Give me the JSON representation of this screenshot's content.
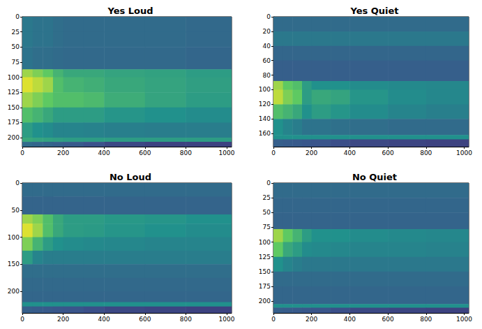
{
  "chart_data": [
    {
      "type": "heatmap",
      "title": "Yes Loud",
      "xlim": [
        0,
        1024
      ],
      "ylim": [
        0,
        215
      ],
      "xticks": [
        0,
        200,
        400,
        600,
        800,
        1000
      ],
      "yticks": [
        0,
        25,
        50,
        75,
        100,
        125,
        150,
        175,
        200
      ],
      "x_edges": [
        0,
        50,
        100,
        150,
        200,
        300,
        400,
        600,
        800,
        1024
      ],
      "y_edges": [
        0,
        25,
        50,
        87,
        100,
        125,
        150,
        175,
        200,
        207,
        215
      ],
      "cells": [
        [
          0.4,
          0.38,
          0.38,
          0.36,
          0.35,
          0.35,
          0.35,
          0.35,
          0.34
        ],
        [
          0.4,
          0.38,
          0.38,
          0.36,
          0.35,
          0.35,
          0.35,
          0.35,
          0.34
        ],
        [
          0.38,
          0.36,
          0.36,
          0.35,
          0.34,
          0.34,
          0.34,
          0.34,
          0.33
        ],
        [
          0.85,
          0.8,
          0.75,
          0.65,
          0.6,
          0.6,
          0.58,
          0.57,
          0.55
        ],
        [
          0.95,
          0.9,
          0.85,
          0.7,
          0.65,
          0.63,
          0.6,
          0.58,
          0.56
        ],
        [
          0.85,
          0.8,
          0.75,
          0.7,
          0.7,
          0.68,
          0.62,
          0.58,
          0.55
        ],
        [
          0.7,
          0.65,
          0.6,
          0.55,
          0.55,
          0.55,
          0.52,
          0.5,
          0.48
        ],
        [
          0.55,
          0.5,
          0.48,
          0.45,
          0.45,
          0.44,
          0.43,
          0.42,
          0.42
        ],
        [
          0.6,
          0.58,
          0.57,
          0.56,
          0.55,
          0.55,
          0.55,
          0.55,
          0.55
        ],
        [
          0.35,
          0.33,
          0.32,
          0.3,
          0.28,
          0.25,
          0.22,
          0.2,
          0.2
        ]
      ]
    },
    {
      "type": "heatmap",
      "title": "Yes Quiet",
      "xlim": [
        0,
        1024
      ],
      "ylim": [
        0,
        178
      ],
      "xticks": [
        0,
        200,
        400,
        600,
        800,
        1000
      ],
      "yticks": [
        0,
        20,
        40,
        60,
        80,
        100,
        120,
        140,
        160
      ],
      "x_edges": [
        0,
        50,
        100,
        150,
        200,
        300,
        400,
        600,
        800,
        1024
      ],
      "y_edges": [
        0,
        20,
        40,
        60,
        88,
        100,
        120,
        140,
        162,
        168,
        178
      ],
      "cells": [
        [
          0.35,
          0.35,
          0.35,
          0.35,
          0.35,
          0.35,
          0.35,
          0.35,
          0.35
        ],
        [
          0.4,
          0.4,
          0.4,
          0.4,
          0.4,
          0.4,
          0.4,
          0.4,
          0.4
        ],
        [
          0.33,
          0.33,
          0.33,
          0.33,
          0.33,
          0.33,
          0.33,
          0.33,
          0.33
        ],
        [
          0.3,
          0.3,
          0.3,
          0.3,
          0.3,
          0.3,
          0.3,
          0.3,
          0.3
        ],
        [
          0.85,
          0.75,
          0.7,
          0.55,
          0.5,
          0.5,
          0.48,
          0.47,
          0.46
        ],
        [
          0.9,
          0.8,
          0.75,
          0.55,
          0.6,
          0.58,
          0.52,
          0.48,
          0.46
        ],
        [
          0.7,
          0.65,
          0.6,
          0.5,
          0.55,
          0.52,
          0.48,
          0.45,
          0.43
        ],
        [
          0.5,
          0.45,
          0.42,
          0.38,
          0.38,
          0.37,
          0.36,
          0.35,
          0.35
        ],
        [
          0.5,
          0.5,
          0.5,
          0.5,
          0.5,
          0.5,
          0.5,
          0.5,
          0.5
        ],
        [
          0.3,
          0.29,
          0.28,
          0.27,
          0.26,
          0.24,
          0.22,
          0.21,
          0.2
        ]
      ]
    },
    {
      "type": "heatmap",
      "title": "No Loud",
      "xlim": [
        0,
        1024
      ],
      "ylim": [
        0,
        240
      ],
      "xticks": [
        0,
        200,
        400,
        600,
        800,
        1000
      ],
      "yticks": [
        0,
        50,
        100,
        150,
        200
      ],
      "x_edges": [
        0,
        50,
        100,
        150,
        200,
        300,
        400,
        600,
        800,
        1024
      ],
      "y_edges": [
        0,
        25,
        58,
        75,
        100,
        125,
        150,
        175,
        200,
        220,
        228,
        240
      ],
      "cells": [
        [
          0.35,
          0.35,
          0.35,
          0.35,
          0.35,
          0.35,
          0.35,
          0.35,
          0.35
        ],
        [
          0.32,
          0.32,
          0.32,
          0.32,
          0.32,
          0.32,
          0.32,
          0.32,
          0.32
        ],
        [
          0.85,
          0.8,
          0.7,
          0.6,
          0.55,
          0.55,
          0.53,
          0.52,
          0.5
        ],
        [
          0.95,
          0.85,
          0.7,
          0.6,
          0.55,
          0.54,
          0.52,
          0.5,
          0.48
        ],
        [
          0.8,
          0.65,
          0.55,
          0.5,
          0.48,
          0.47,
          0.46,
          0.45,
          0.45
        ],
        [
          0.55,
          0.45,
          0.42,
          0.42,
          0.42,
          0.42,
          0.42,
          0.42,
          0.42
        ],
        [
          0.36,
          0.36,
          0.36,
          0.36,
          0.36,
          0.36,
          0.36,
          0.36,
          0.36
        ],
        [
          0.34,
          0.34,
          0.34,
          0.34,
          0.34,
          0.34,
          0.34,
          0.34,
          0.34
        ],
        [
          0.33,
          0.33,
          0.33,
          0.33,
          0.33,
          0.33,
          0.33,
          0.33,
          0.33
        ],
        [
          0.5,
          0.5,
          0.5,
          0.5,
          0.5,
          0.5,
          0.5,
          0.5,
          0.5
        ],
        [
          0.3,
          0.29,
          0.28,
          0.27,
          0.26,
          0.24,
          0.22,
          0.21,
          0.2
        ]
      ]
    },
    {
      "type": "heatmap",
      "title": "No Quiet",
      "xlim": [
        0,
        1024
      ],
      "ylim": [
        0,
        220
      ],
      "xticks": [
        0,
        200,
        400,
        600,
        800,
        1000
      ],
      "yticks": [
        0,
        25,
        50,
        75,
        100,
        125,
        150,
        175,
        200
      ],
      "x_edges": [
        0,
        50,
        100,
        150,
        200,
        300,
        400,
        600,
        800,
        1024
      ],
      "y_edges": [
        0,
        25,
        50,
        78,
        100,
        125,
        150,
        175,
        205,
        211,
        220
      ],
      "cells": [
        [
          0.35,
          0.35,
          0.35,
          0.35,
          0.35,
          0.35,
          0.35,
          0.35,
          0.35
        ],
        [
          0.33,
          0.33,
          0.33,
          0.33,
          0.33,
          0.33,
          0.33,
          0.33,
          0.33
        ],
        [
          0.32,
          0.32,
          0.32,
          0.32,
          0.32,
          0.32,
          0.32,
          0.32,
          0.32
        ],
        [
          0.85,
          0.75,
          0.65,
          0.55,
          0.5,
          0.5,
          0.48,
          0.47,
          0.46
        ],
        [
          0.75,
          0.6,
          0.55,
          0.48,
          0.47,
          0.46,
          0.45,
          0.45,
          0.44
        ],
        [
          0.5,
          0.45,
          0.42,
          0.4,
          0.4,
          0.4,
          0.4,
          0.4,
          0.4
        ],
        [
          0.35,
          0.35,
          0.35,
          0.35,
          0.35,
          0.35,
          0.35,
          0.35,
          0.35
        ],
        [
          0.33,
          0.33,
          0.33,
          0.33,
          0.33,
          0.33,
          0.33,
          0.33,
          0.33
        ],
        [
          0.5,
          0.5,
          0.5,
          0.5,
          0.5,
          0.5,
          0.5,
          0.5,
          0.5
        ],
        [
          0.3,
          0.29,
          0.28,
          0.27,
          0.26,
          0.24,
          0.22,
          0.21,
          0.2
        ]
      ]
    }
  ]
}
